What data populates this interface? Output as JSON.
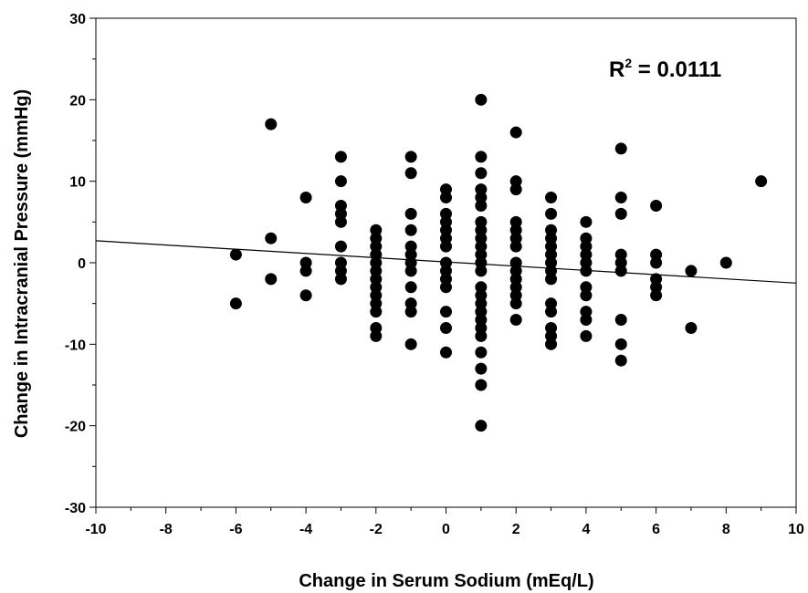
{
  "chart_data": {
    "type": "scatter",
    "title": "",
    "xlabel": "Change in Serum Sodium (mEq/L)",
    "ylabel": "Change in Intracranial Pressure (mmHg)",
    "xlim": [
      -10,
      10
    ],
    "ylim": [
      -30,
      30
    ],
    "x_ticks": [
      -10,
      -8,
      -6,
      -4,
      -2,
      0,
      2,
      4,
      6,
      8,
      10
    ],
    "y_ticks": [
      -30,
      -20,
      -10,
      0,
      10,
      20,
      30
    ],
    "grid": false,
    "legend": "none",
    "annotation": {
      "base": "R",
      "superscript": "2",
      "text": " = 0.0111"
    },
    "regression_line": {
      "x": [
        -10,
        10
      ],
      "y": [
        2.7,
        -2.5
      ]
    },
    "points": [
      [
        -6,
        1
      ],
      [
        -6,
        -5
      ],
      [
        -5,
        17
      ],
      [
        -5,
        3
      ],
      [
        -5,
        -2
      ],
      [
        -4,
        8
      ],
      [
        -4,
        0
      ],
      [
        -4,
        -1
      ],
      [
        -4,
        -4
      ],
      [
        -3,
        13
      ],
      [
        -3,
        10
      ],
      [
        -3,
        7
      ],
      [
        -3,
        6
      ],
      [
        -3,
        5
      ],
      [
        -3,
        2
      ],
      [
        -3,
        0
      ],
      [
        -3,
        -1
      ],
      [
        -3,
        -2
      ],
      [
        -2,
        4
      ],
      [
        -2,
        3
      ],
      [
        -2,
        2
      ],
      [
        -2,
        1
      ],
      [
        -2,
        0
      ],
      [
        -2,
        -1
      ],
      [
        -2,
        -2
      ],
      [
        -2,
        -3
      ],
      [
        -2,
        -4
      ],
      [
        -2,
        -5
      ],
      [
        -2,
        -6
      ],
      [
        -2,
        -8
      ],
      [
        -2,
        -9
      ],
      [
        -1,
        13
      ],
      [
        -1,
        11
      ],
      [
        -1,
        6
      ],
      [
        -1,
        4
      ],
      [
        -1,
        2
      ],
      [
        -1,
        1
      ],
      [
        -1,
        0
      ],
      [
        -1,
        -1
      ],
      [
        -1,
        -3
      ],
      [
        -1,
        -5
      ],
      [
        -1,
        -6
      ],
      [
        -1,
        -10
      ],
      [
        0,
        9
      ],
      [
        0,
        8
      ],
      [
        0,
        6
      ],
      [
        0,
        5
      ],
      [
        0,
        4
      ],
      [
        0,
        3
      ],
      [
        0,
        2
      ],
      [
        0,
        0
      ],
      [
        0,
        -1
      ],
      [
        0,
        -2
      ],
      [
        0,
        -3
      ],
      [
        0,
        -6
      ],
      [
        0,
        -8
      ],
      [
        0,
        -11
      ],
      [
        1,
        20
      ],
      [
        1,
        13
      ],
      [
        1,
        11
      ],
      [
        1,
        9
      ],
      [
        1,
        8
      ],
      [
        1,
        7
      ],
      [
        1,
        5
      ],
      [
        1,
        4
      ],
      [
        1,
        3
      ],
      [
        1,
        2
      ],
      [
        1,
        1
      ],
      [
        1,
        0
      ],
      [
        1,
        -1
      ],
      [
        1,
        -3
      ],
      [
        1,
        -4
      ],
      [
        1,
        -5
      ],
      [
        1,
        -6
      ],
      [
        1,
        -7
      ],
      [
        1,
        -8
      ],
      [
        1,
        -9
      ],
      [
        1,
        -11
      ],
      [
        1,
        -13
      ],
      [
        1,
        -15
      ],
      [
        1,
        -20
      ],
      [
        2,
        16
      ],
      [
        2,
        10
      ],
      [
        2,
        9
      ],
      [
        2,
        5
      ],
      [
        2,
        4
      ],
      [
        2,
        3
      ],
      [
        2,
        2
      ],
      [
        2,
        0
      ],
      [
        2,
        -1
      ],
      [
        2,
        -2
      ],
      [
        2,
        -3
      ],
      [
        2,
        -4
      ],
      [
        2,
        -5
      ],
      [
        2,
        -7
      ],
      [
        3,
        8
      ],
      [
        3,
        6
      ],
      [
        3,
        4
      ],
      [
        3,
        3
      ],
      [
        3,
        2
      ],
      [
        3,
        1
      ],
      [
        3,
        0
      ],
      [
        3,
        -1
      ],
      [
        3,
        -2
      ],
      [
        3,
        -5
      ],
      [
        3,
        -6
      ],
      [
        3,
        -8
      ],
      [
        3,
        -9
      ],
      [
        3,
        -10
      ],
      [
        4,
        5
      ],
      [
        4,
        3
      ],
      [
        4,
        2
      ],
      [
        4,
        1
      ],
      [
        4,
        0
      ],
      [
        4,
        -1
      ],
      [
        4,
        -3
      ],
      [
        4,
        -4
      ],
      [
        4,
        -6
      ],
      [
        4,
        -7
      ],
      [
        4,
        -9
      ],
      [
        5,
        14
      ],
      [
        5,
        8
      ],
      [
        5,
        6
      ],
      [
        5,
        1
      ],
      [
        5,
        0
      ],
      [
        5,
        -1
      ],
      [
        5,
        -7
      ],
      [
        5,
        -10
      ],
      [
        5,
        -12
      ],
      [
        6,
        7
      ],
      [
        6,
        1
      ],
      [
        6,
        0
      ],
      [
        6,
        -2
      ],
      [
        6,
        -3
      ],
      [
        6,
        -4
      ],
      [
        7,
        -1
      ],
      [
        7,
        -8
      ],
      [
        8,
        0
      ],
      [
        9,
        10
      ]
    ]
  }
}
